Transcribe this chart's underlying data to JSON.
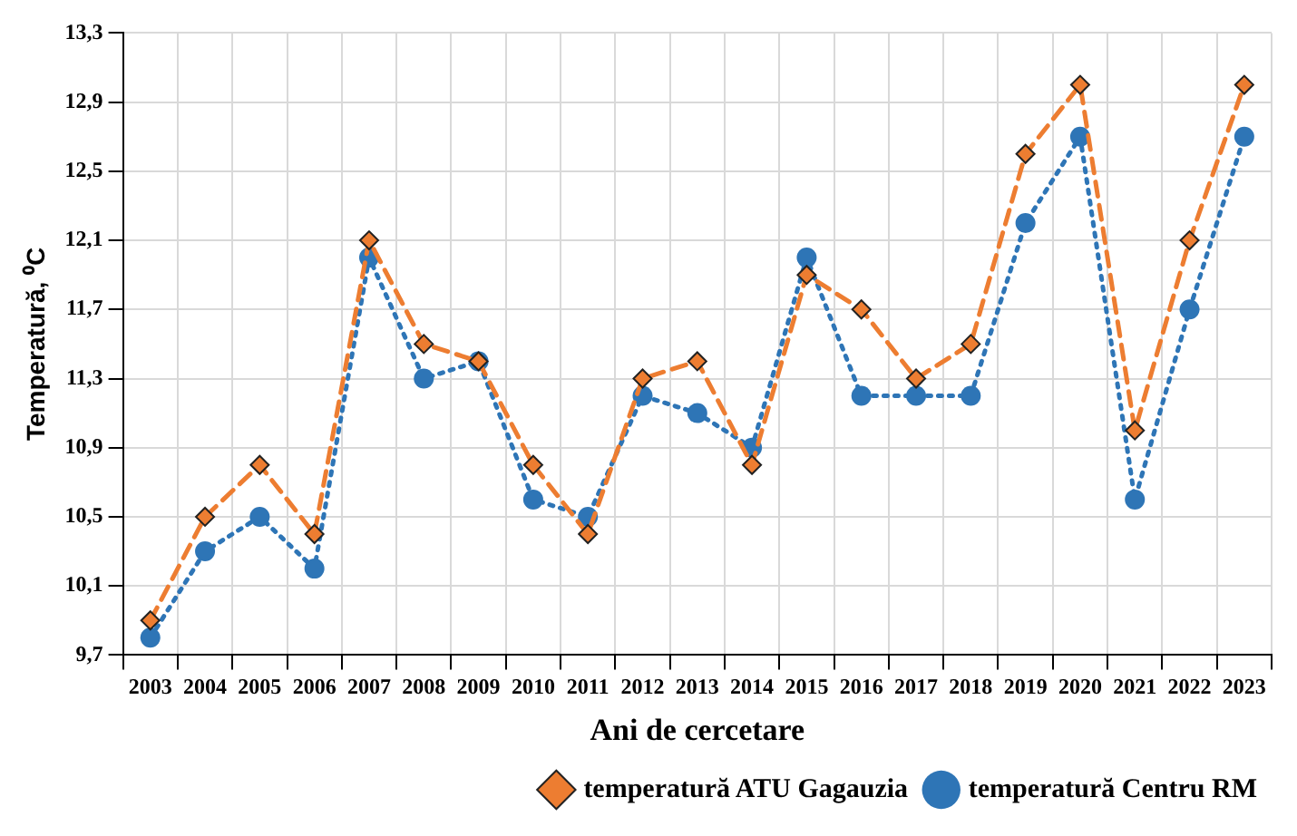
{
  "chart_data": {
    "type": "line",
    "xlabel": "Ani de cercetare",
    "ylabel": "Temperatură, ⁰C",
    "categories": [
      "2003",
      "2004",
      "2005",
      "2006",
      "2007",
      "2008",
      "2009",
      "2010",
      "2011",
      "2012",
      "2013",
      "2014",
      "2015",
      "2016",
      "2017",
      "2018",
      "2019",
      "2020",
      "2021",
      "2022",
      "2023"
    ],
    "series": [
      {
        "name": "temperatură ATU Gagauzia",
        "color": "#ed7d31",
        "marker": "diamond",
        "line_style": "dashed",
        "values": [
          9.9,
          10.5,
          10.8,
          10.4,
          12.1,
          11.5,
          11.4,
          10.8,
          10.4,
          11.3,
          11.4,
          10.8,
          11.9,
          11.7,
          11.3,
          11.5,
          12.6,
          13.0,
          11.0,
          12.1,
          13.0
        ]
      },
      {
        "name": "temperatură Centru RM",
        "color": "#2e75b6",
        "marker": "circle",
        "line_style": "dotted",
        "values": [
          9.8,
          10.3,
          10.5,
          10.2,
          12.0,
          11.3,
          11.4,
          10.6,
          10.5,
          11.2,
          11.1,
          10.9,
          12.0,
          11.2,
          11.2,
          11.2,
          12.2,
          12.7,
          10.6,
          11.7,
          12.7
        ]
      }
    ],
    "ylim": [
      9.7,
      13.3
    ],
    "yticks": [
      {
        "value": 9.7,
        "label": "9,7"
      },
      {
        "value": 10.1,
        "label": "10,1"
      },
      {
        "value": 10.5,
        "label": "10,5"
      },
      {
        "value": 10.9,
        "label": "10,9"
      },
      {
        "value": 11.3,
        "label": "11,3"
      },
      {
        "value": 11.7,
        "label": "11,7"
      },
      {
        "value": 12.1,
        "label": "12,1"
      },
      {
        "value": 12.5,
        "label": "12,5"
      },
      {
        "value": 12.9,
        "label": "12,9"
      },
      {
        "value": 13.3,
        "label": "13,3"
      }
    ],
    "grid": true,
    "legend": "bottom right"
  }
}
